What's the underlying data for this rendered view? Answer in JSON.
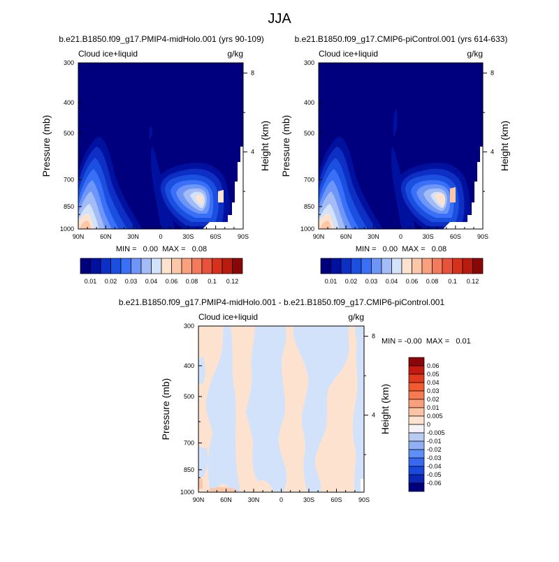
{
  "chart_data": {
    "type": "heatmap",
    "title": "JJA",
    "panels": [
      {
        "title": "b.e21.B1850.f09_g17.PMIP4-midHolo.001 (yrs 90-109)",
        "variable": "Cloud ice+liquid",
        "units": "g/kg",
        "ylabel": "Pressure (mb)",
        "ylabel_right": "Height (km)",
        "x_ticks": [
          "90N",
          "60N",
          "30N",
          "0",
          "30S",
          "60S",
          "90S"
        ],
        "y_ticks": [
          "300",
          "400",
          "500",
          "700",
          "850",
          "1000"
        ],
        "y_ticks_right": [
          "8",
          "4"
        ],
        "stats": "MIN =   0.00  MAX =   0.08"
      },
      {
        "title": "b.e21.B1850.f09_g17.CMIP6-piControl.001 (yrs 614-633)",
        "variable": "Cloud ice+liquid",
        "units": "g/kg",
        "ylabel": "Pressure (mb)",
        "ylabel_right": "Height (km)",
        "x_ticks": [
          "90N",
          "60N",
          "30N",
          "0",
          "30S",
          "60S",
          "90S"
        ],
        "y_ticks": [
          "300",
          "400",
          "500",
          "700",
          "850",
          "1000"
        ],
        "y_ticks_right": [
          "8",
          "4"
        ],
        "stats": "MIN =   0.00  MAX =   0.08"
      },
      {
        "title": "b.e21.B1850.f09_g17.PMIP4-midHolo.001 - b.e21.B1850.f09_g17.CMIP6-piControl.001",
        "variable": "Cloud ice+liquid",
        "units": "g/kg",
        "ylabel": "Pressure (mb)",
        "ylabel_right": "Height (km)",
        "x_ticks": [
          "90N",
          "60N",
          "30N",
          "0",
          "30S",
          "60S",
          "90S"
        ],
        "y_ticks": [
          "300",
          "400",
          "500",
          "700",
          "850",
          "1000"
        ],
        "y_ticks_right": [
          "8",
          "4"
        ],
        "stats": "MIN = -0.00  MAX =   0.01"
      }
    ],
    "colorbar_main": {
      "labels": [
        "0.01",
        "0.02",
        "0.03",
        "0.04",
        "0.06",
        "0.08",
        "0.1",
        "0.12"
      ],
      "colors": [
        "#00007f",
        "#00109f",
        "#0d2fc3",
        "#1b4fe0",
        "#3a70f7",
        "#6e96f8",
        "#a3bcf6",
        "#d3e2fb",
        "#fde3cf",
        "#fcc7a8",
        "#f9a07f",
        "#f37a5b",
        "#e8513a",
        "#d6311d",
        "#b81c10",
        "#8a0707"
      ]
    },
    "colorbar_diff": {
      "labels": [
        "0.06",
        "0.05",
        "0.04",
        "0.03",
        "0.02",
        "0.01",
        "0.005",
        "0",
        "-0.005",
        "-0.01",
        "-0.02",
        "-0.03",
        "-0.04",
        "-0.05",
        "-0.06"
      ],
      "colors": [
        "#8a0707",
        "#c41a0f",
        "#e23a1c",
        "#f25a30",
        "#f77b52",
        "#f99f7c",
        "#fcc3a4",
        "#fde3cf",
        "#f4f4f8",
        "#b8ccf2",
        "#8fb0f4",
        "#5e8ef7",
        "#3868f0",
        "#1a48dc",
        "#0c26b7",
        "#00007f"
      ]
    },
    "diff_colors": {
      "positive": "#fde3cf",
      "negative": "#d3e2fb"
    }
  }
}
